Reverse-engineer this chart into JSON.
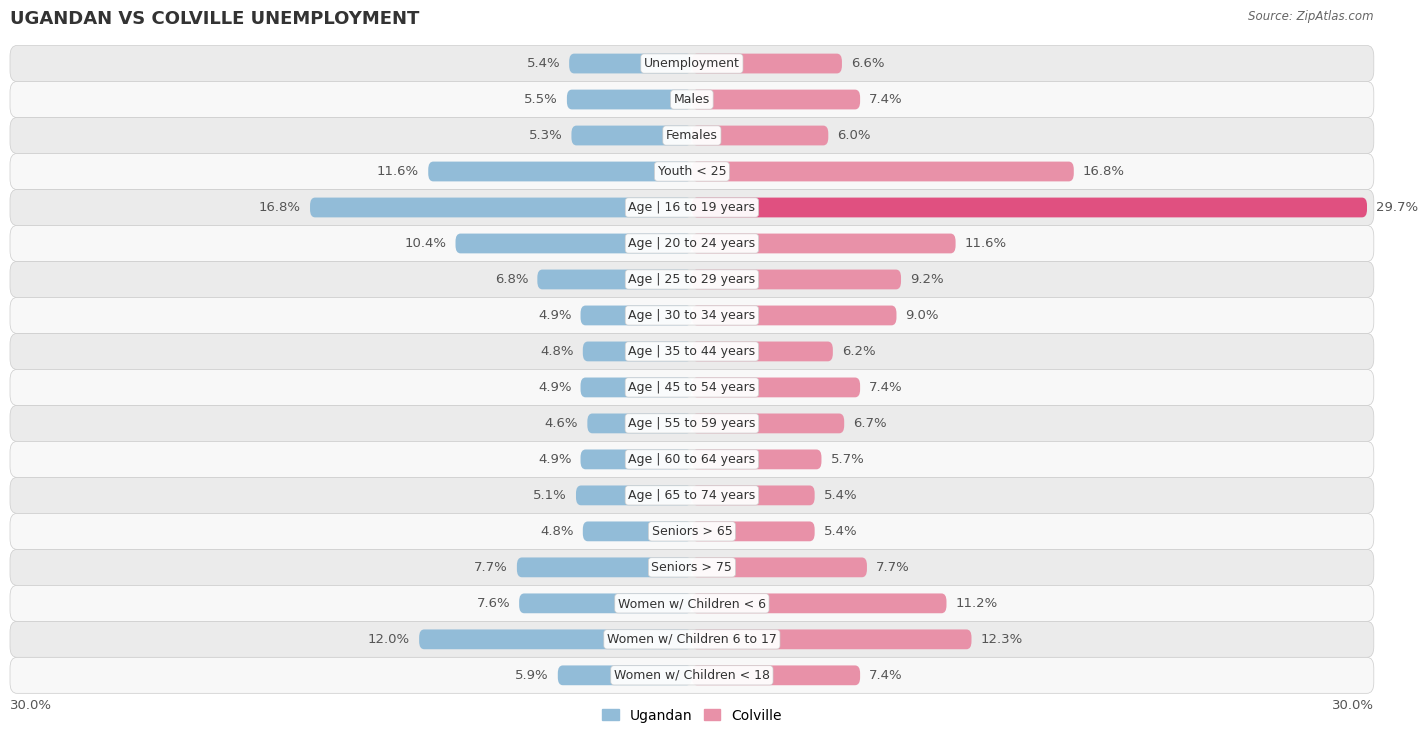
{
  "title": "UGANDAN VS COLVILLE UNEMPLOYMENT",
  "source": "Source: ZipAtlas.com",
  "categories": [
    "Unemployment",
    "Males",
    "Females",
    "Youth < 25",
    "Age | 16 to 19 years",
    "Age | 20 to 24 years",
    "Age | 25 to 29 years",
    "Age | 30 to 34 years",
    "Age | 35 to 44 years",
    "Age | 45 to 54 years",
    "Age | 55 to 59 years",
    "Age | 60 to 64 years",
    "Age | 65 to 74 years",
    "Seniors > 65",
    "Seniors > 75",
    "Women w/ Children < 6",
    "Women w/ Children 6 to 17",
    "Women w/ Children < 18"
  ],
  "ugandan": [
    5.4,
    5.5,
    5.3,
    11.6,
    16.8,
    10.4,
    6.8,
    4.9,
    4.8,
    4.9,
    4.6,
    4.9,
    5.1,
    4.8,
    7.7,
    7.6,
    12.0,
    5.9
  ],
  "colville": [
    6.6,
    7.4,
    6.0,
    16.8,
    29.7,
    11.6,
    9.2,
    9.0,
    6.2,
    7.4,
    6.7,
    5.7,
    5.4,
    5.4,
    7.7,
    11.2,
    12.3,
    7.4
  ],
  "ugandan_color": "#92bcd8",
  "colville_color": "#e891a8",
  "colville_highlight_color": "#e05080",
  "row_bg_odd": "#ebebeb",
  "row_bg_even": "#f8f8f8",
  "axis_limit": 30.0,
  "bar_height": 0.55,
  "title_fontsize": 13,
  "label_fontsize": 9.5,
  "category_fontsize": 9,
  "legend_labels": [
    "Ugandan",
    "Colville"
  ],
  "bottom_axis_label": "30.0%",
  "value_color": "#555555"
}
